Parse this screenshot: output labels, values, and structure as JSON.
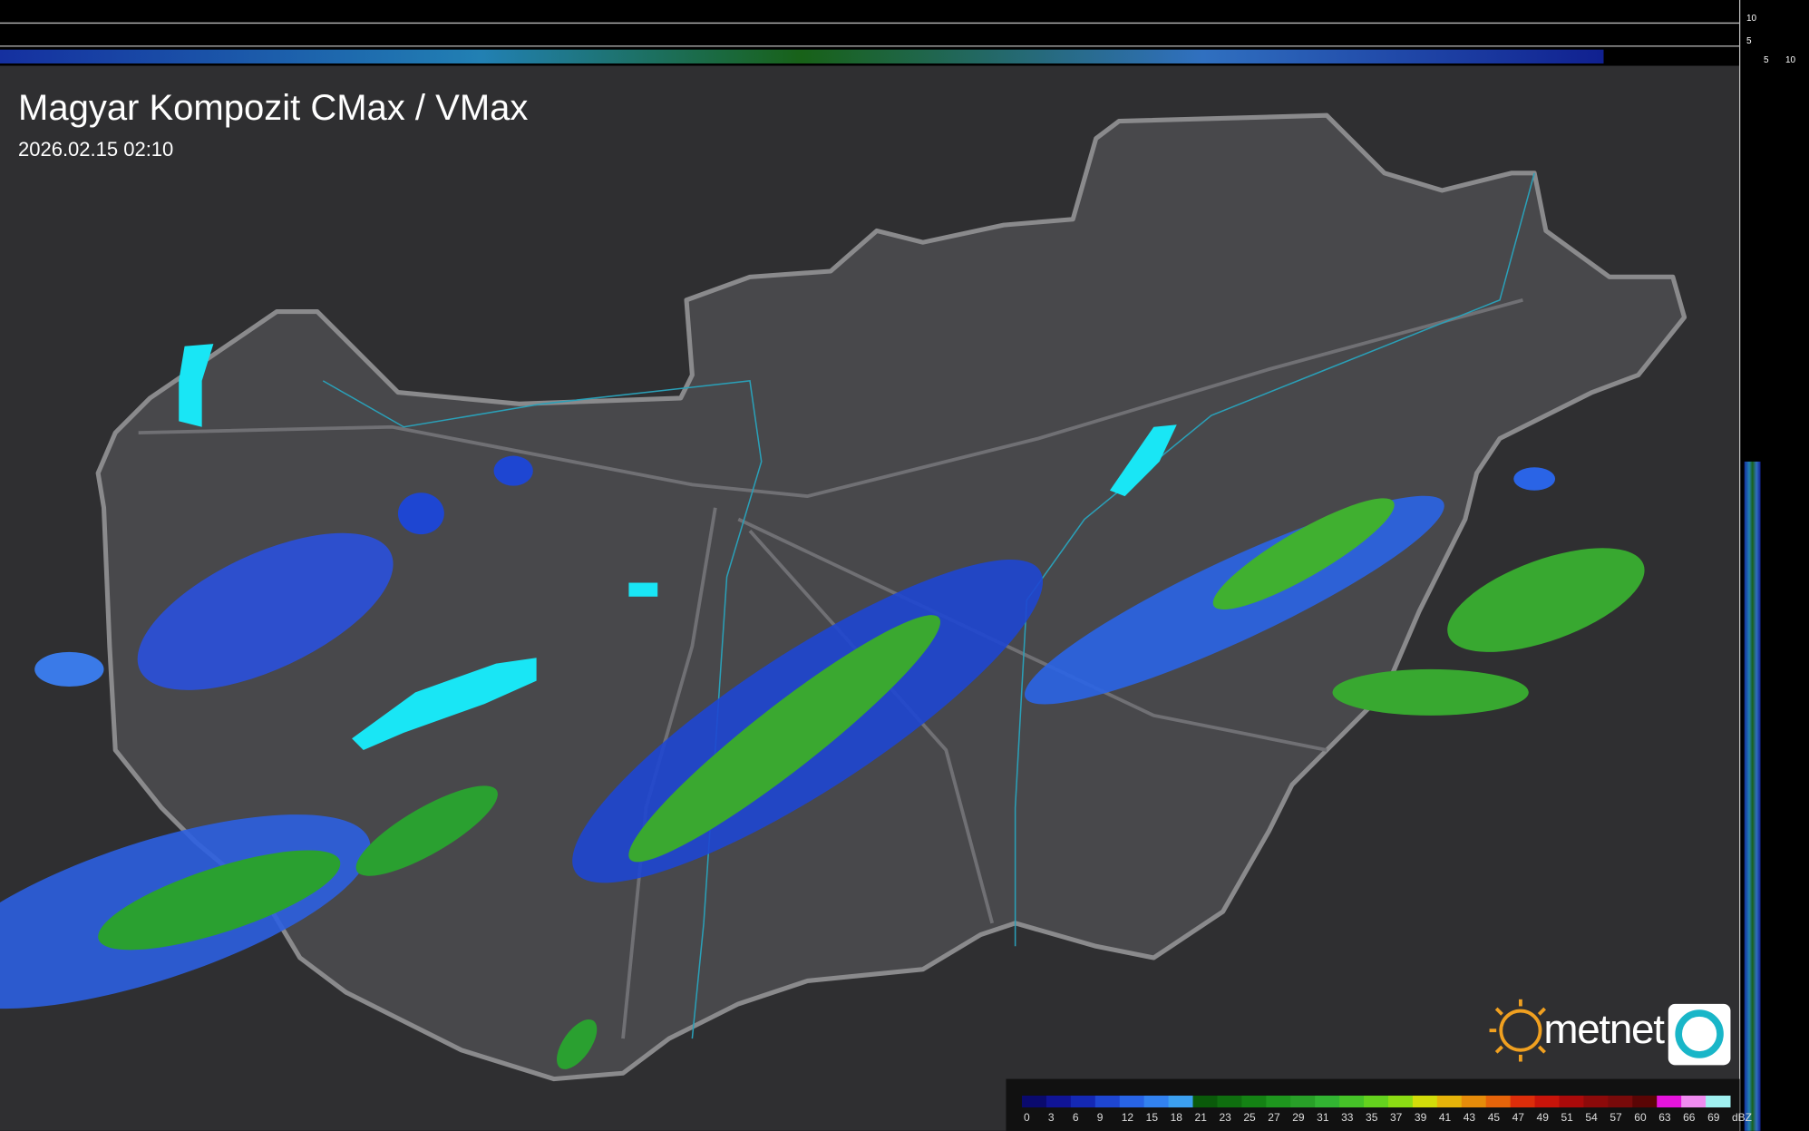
{
  "header": {
    "title": "Magyar Kompozit CMax / VMax",
    "timestamp": "2026.02.15 02:10"
  },
  "side_axis": {
    "top_labels": [
      "10",
      "5"
    ],
    "bottom_labels": [
      "5",
      "10"
    ]
  },
  "logo": {
    "text": "metnet"
  },
  "legend": {
    "unit": "dBZ",
    "steps": [
      {
        "label": "0",
        "color": "#0a0a6e"
      },
      {
        "label": "3",
        "color": "#101496"
      },
      {
        "label": "6",
        "color": "#1428b4"
      },
      {
        "label": "9",
        "color": "#1e46d2"
      },
      {
        "label": "12",
        "color": "#2864e6"
      },
      {
        "label": "15",
        "color": "#3282f0"
      },
      {
        "label": "18",
        "color": "#3ca0f0"
      },
      {
        "label": "21",
        "color": "#0a5a0a"
      },
      {
        "label": "23",
        "color": "#0f6e0f"
      },
      {
        "label": "25",
        "color": "#148214"
      },
      {
        "label": "27",
        "color": "#1e961e"
      },
      {
        "label": "29",
        "color": "#28a028"
      },
      {
        "label": "31",
        "color": "#32b432"
      },
      {
        "label": "33",
        "color": "#46c328"
      },
      {
        "label": "35",
        "color": "#64d21e"
      },
      {
        "label": "37",
        "color": "#8cdc14"
      },
      {
        "label": "39",
        "color": "#d2dc0a"
      },
      {
        "label": "41",
        "color": "#e6b40a"
      },
      {
        "label": "43",
        "color": "#e68c0a"
      },
      {
        "label": "45",
        "color": "#e6640a"
      },
      {
        "label": "47",
        "color": "#dc2d0a"
      },
      {
        "label": "49",
        "color": "#c8140a"
      },
      {
        "label": "51",
        "color": "#aa0a0a"
      },
      {
        "label": "54",
        "color": "#8c0a0a"
      },
      {
        "label": "57",
        "color": "#780a0a"
      },
      {
        "label": "60",
        "color": "#5a0505"
      },
      {
        "label": "63",
        "color": "#e614dc"
      },
      {
        "label": "66",
        "color": "#f08cf0"
      },
      {
        "label": "69",
        "color": "#a0f0f0"
      }
    ]
  }
}
